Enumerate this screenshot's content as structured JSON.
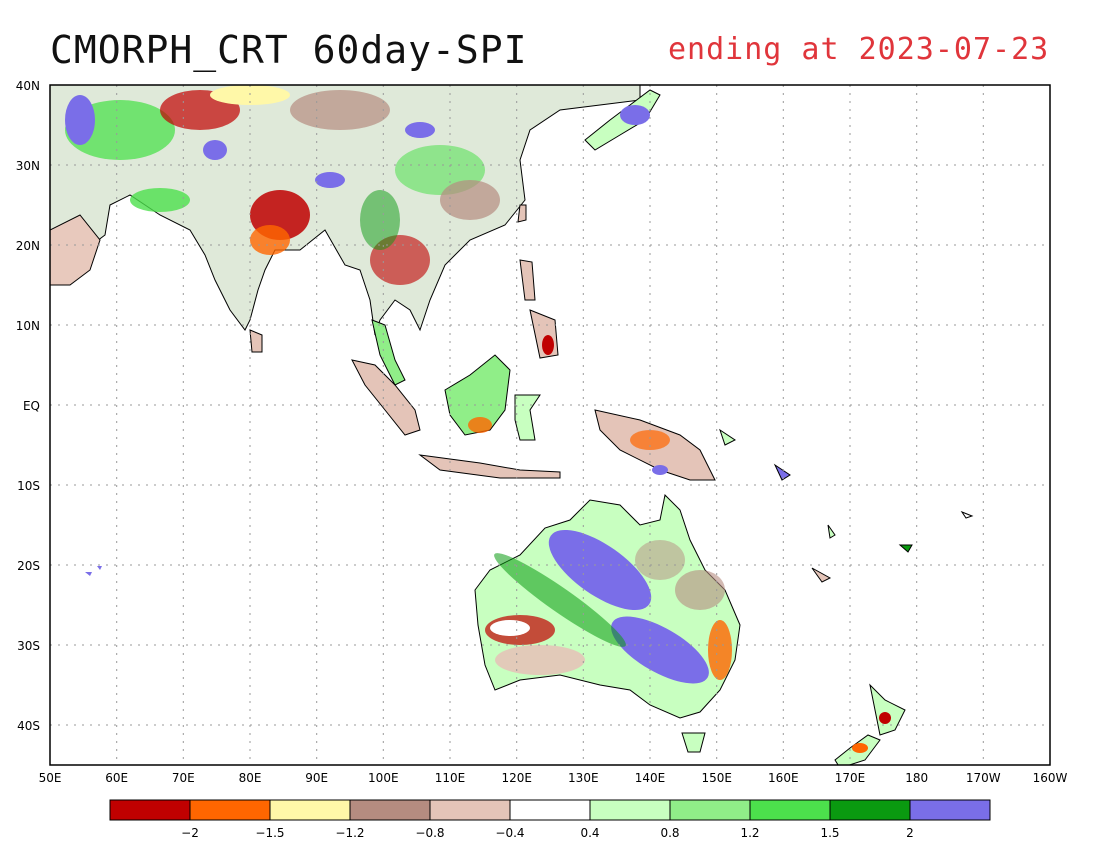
{
  "title": "CMORPH_CRT 60day-SPI",
  "subtitle": "ending at 2023-07-23",
  "map": {
    "lat_labels": [
      "40N",
      "30N",
      "20N",
      "10N",
      "EQ",
      "10S",
      "20S",
      "30S",
      "40S"
    ],
    "lon_labels": [
      "50E",
      "60E",
      "70E",
      "80E",
      "90E",
      "100E",
      "110E",
      "120E",
      "130E",
      "140E",
      "150E",
      "160E",
      "170E",
      "180",
      "170W",
      "160W"
    ],
    "grid": true,
    "lon_range": [
      50,
      200
    ],
    "lat_range": [
      -45,
      40
    ]
  },
  "legend": {
    "colors": [
      "#c00000",
      "#ff6600",
      "#fff8a8",
      "#b58c80",
      "#e4c4b8",
      "#ffffff",
      "#c8ffc0",
      "#90ee88",
      "#4ce04c",
      "#0a9a10",
      "#7a6ee8"
    ],
    "labels": [
      "-2",
      "-1.5",
      "-1.2",
      "-0.8",
      "-0.4",
      "0.4",
      "0.8",
      "1.2",
      "1.5",
      "2"
    ]
  }
}
